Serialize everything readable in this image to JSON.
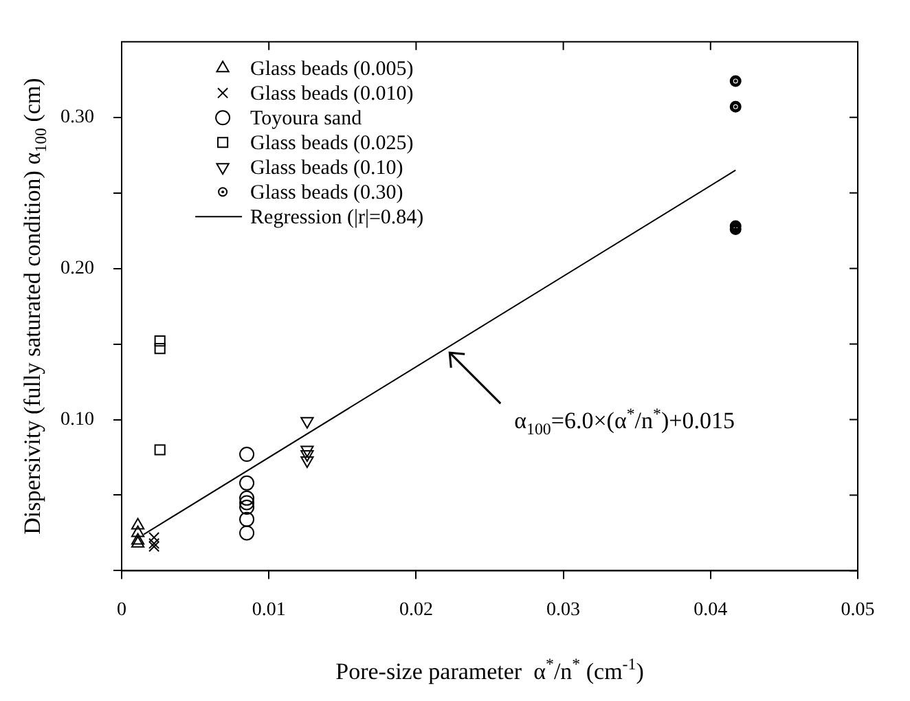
{
  "chart_data": {
    "type": "scatter",
    "xlabel": "Pore-size parameter  α$^{*}$/n$^{*}$ (cm$^{-1}$)",
    "ylabel": "Dispersivity (fully saturated condition) α$_{100}$ (cm)",
    "xlim": [
      0,
      0.05
    ],
    "xticks": [
      0,
      0.01,
      0.02,
      0.03,
      0.04,
      0.05
    ],
    "ylim": [
      0,
      0.35
    ],
    "yticks": [
      {
        "value": 0,
        "label": null
      },
      {
        "value": 0.05,
        "label": null
      },
      {
        "value": 0.1,
        "label": "0.10"
      },
      {
        "value": 0.15,
        "label": null
      },
      {
        "value": 0.2,
        "label": "0.20"
      },
      {
        "value": 0.25,
        "label": null
      },
      {
        "value": 0.3,
        "label": "0.30"
      }
    ],
    "grid": false,
    "legend": "top left",
    "series": [
      {
        "name": "Glass beads (0.005)",
        "color": "#000000",
        "marker": "triangle",
        "x": [
          0.0011,
          0.0011,
          0.0011,
          0.0011
        ],
        "values": [
          0.03,
          0.025,
          0.02,
          0.018
        ]
      },
      {
        "name": "Glass beads (0.010)",
        "color": "#000000",
        "marker": "cross",
        "x": [
          0.0022,
          0.0022,
          0.0022
        ],
        "values": [
          0.022,
          0.018,
          0.016
        ]
      },
      {
        "name": "Toyoura sand",
        "color": "#000000",
        "marker": "circle",
        "x": [
          0.0085,
          0.0085,
          0.0085,
          0.0085,
          0.0085,
          0.0085,
          0.0085
        ],
        "values": [
          0.077,
          0.058,
          0.048,
          0.045,
          0.042,
          0.034,
          0.025
        ]
      },
      {
        "name": "Glass beads (0.025)",
        "color": "#000000",
        "marker": "square",
        "x": [
          0.0026,
          0.0026,
          0.0026
        ],
        "values": [
          0.152,
          0.147,
          0.08
        ]
      },
      {
        "name": "Glass beads (0.10)",
        "color": "#000000",
        "marker": "triangle-down",
        "x": [
          0.0126,
          0.0126,
          0.0126,
          0.0126
        ],
        "values": [
          0.099,
          0.08,
          0.077,
          0.073
        ]
      },
      {
        "name": "Glass beads (0.30)",
        "color": "#000000",
        "marker": "double-circle",
        "x": [
          0.0417,
          0.0417,
          0.0417,
          0.0417
        ],
        "values": [
          0.324,
          0.307,
          0.228,
          0.226
        ]
      },
      {
        "name": "Regression (|r|=0.84)",
        "type": "line",
        "color": "#000000",
        "marker": "none",
        "line_style": "solid",
        "x": [
          0.0015,
          0.0417
        ],
        "values": [
          0.024,
          0.265
        ]
      }
    ],
    "annotations": [
      {
        "text": "α$_{100}$=6.0×(α$^{*}$/n$^{*}$)+0.015",
        "x": 0.022,
        "y": 0.147
      }
    ]
  }
}
